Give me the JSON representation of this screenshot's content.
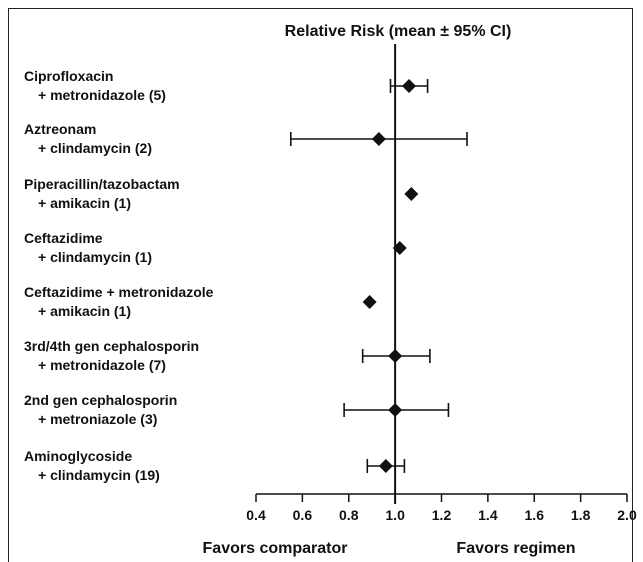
{
  "chart_data": {
    "type": "forest",
    "title": "Relative Risk (mean ± 95% CI)",
    "xlim": [
      0.4,
      2.0
    ],
    "reference_line": 1.0,
    "x_ticks": [
      "0.4",
      "0.6",
      "0.8",
      "1.0",
      "1.2",
      "1.4",
      "1.6",
      "1.8",
      "2.0"
    ],
    "rows": [
      {
        "label_line1": "Ciprofloxacin",
        "label_line2": "+ metronidazole (5)",
        "mean": 1.06,
        "ci_low": 0.98,
        "ci_high": 1.14
      },
      {
        "label_line1": "Aztreonam",
        "label_line2": "+ clindamycin (2)",
        "mean": 0.93,
        "ci_low": 0.55,
        "ci_high": 1.31
      },
      {
        "label_line1": "Piperacillin/tazobactam",
        "label_line2": "+ amikacin (1)",
        "mean": 1.07,
        "ci_low": null,
        "ci_high": null
      },
      {
        "label_line1": "Ceftazidime",
        "label_line2": "+ clindamycin (1)",
        "mean": 1.02,
        "ci_low": null,
        "ci_high": null
      },
      {
        "label_line1": "Ceftazidime + metronidazole",
        "label_line2": "+ amikacin (1)",
        "mean": 0.89,
        "ci_low": null,
        "ci_high": null
      },
      {
        "label_line1": "3rd/4th gen cephalosporin",
        "label_line2": "+ metronidazole (7)",
        "mean": 1.0,
        "ci_low": 0.86,
        "ci_high": 1.15
      },
      {
        "label_line1": "2nd gen cephalosporin",
        "label_line2": "+ metroniazole (3)",
        "mean": 1.0,
        "ci_low": 0.78,
        "ci_high": 1.23
      },
      {
        "label_line1": "Aminoglycoside",
        "label_line2": "+ clindamycin (19)",
        "mean": 0.96,
        "ci_low": 0.88,
        "ci_high": 1.04
      }
    ],
    "favors_left": "Favors comparator",
    "favors_right": "Favors regimen"
  }
}
